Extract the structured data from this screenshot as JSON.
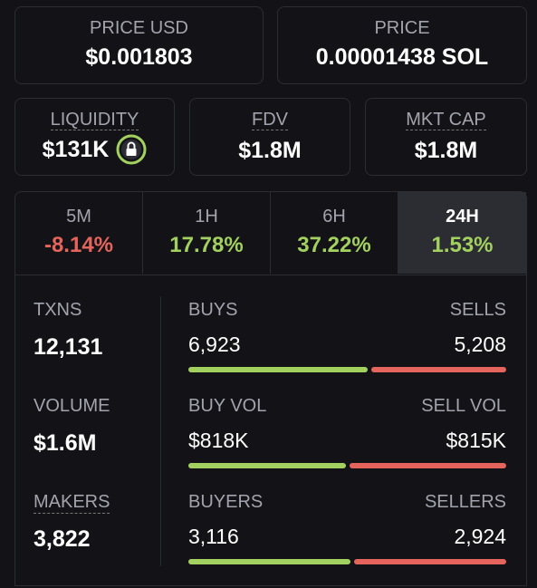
{
  "price_usd": {
    "label": "PRICE USD",
    "value": "$0.001803"
  },
  "price": {
    "label": "PRICE",
    "value": "0.00001438 SOL"
  },
  "liquidity": {
    "label": "LIQUIDITY",
    "value": "$131K"
  },
  "fdv": {
    "label": "FDV",
    "value": "$1.8M"
  },
  "mkt_cap": {
    "label": "MKT CAP",
    "value": "$1.8M"
  },
  "timeframes": [
    {
      "label": "5M",
      "change": "-8.14%",
      "color": "#e5655c"
    },
    {
      "label": "1H",
      "change": "17.78%",
      "color": "#a3d160"
    },
    {
      "label": "6H",
      "change": "37.22%",
      "color": "#a3d160"
    },
    {
      "label": "24H",
      "change": "1.53%",
      "color": "#a3d160"
    }
  ],
  "selected_timeframe": 3,
  "buy_color": "#a3d160",
  "sell_color": "#e5655c",
  "stats": [
    {
      "label": "TXNS",
      "value": "12,131",
      "left": {
        "label": "BUYS",
        "text": "6,923",
        "value": 6923
      },
      "right": {
        "label": "SELLS",
        "text": "5,208",
        "value": 5208
      }
    },
    {
      "label": "VOLUME",
      "value": "$1.6M",
      "left": {
        "label": "BUY VOL",
        "text": "$818K",
        "value": 818000
      },
      "right": {
        "label": "SELL VOL",
        "text": "$815K",
        "value": 815000
      }
    },
    {
      "label": "MAKERS",
      "value": "3,822",
      "left": {
        "label": "BUYERS",
        "text": "3,116",
        "value": 3116
      },
      "right": {
        "label": "SELLERS",
        "text": "2,924",
        "value": 2924
      }
    }
  ]
}
